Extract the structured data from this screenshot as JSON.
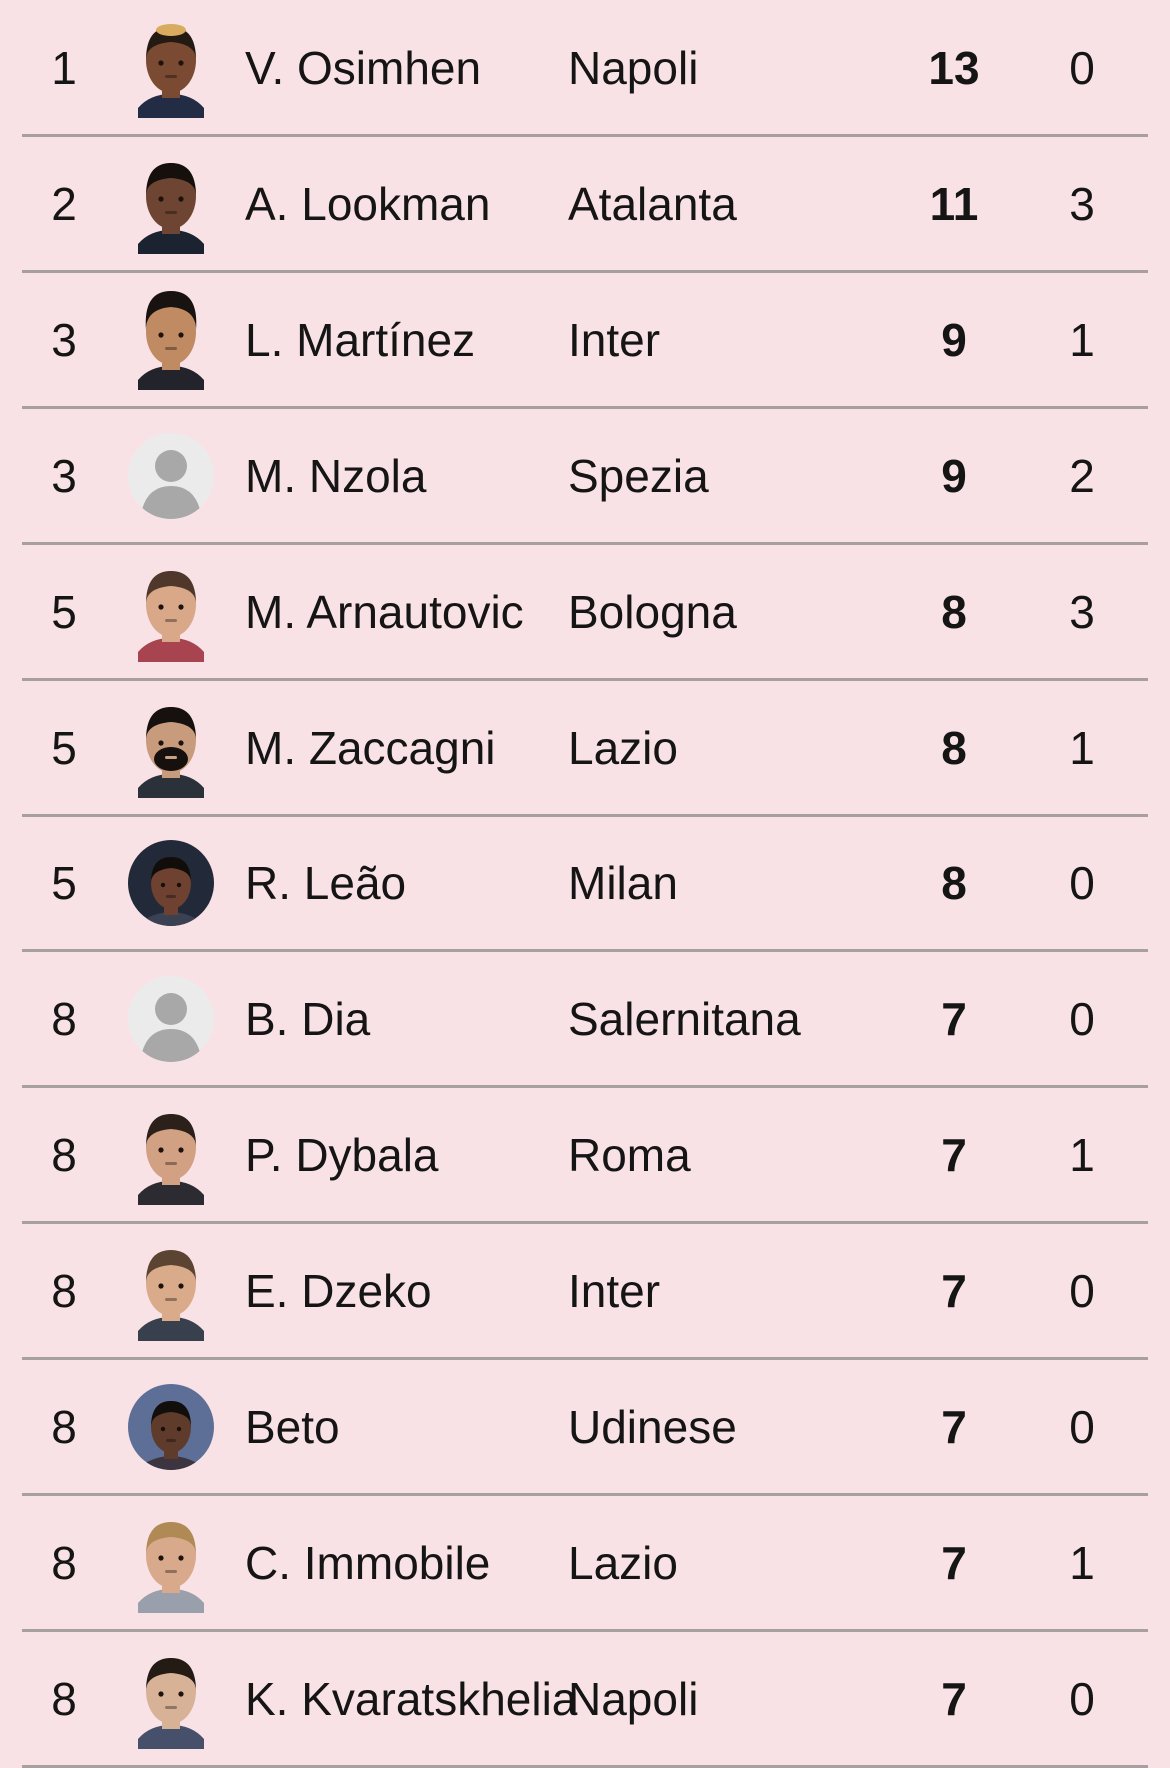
{
  "colors": {
    "background": "#f9e2e5",
    "divider": "#a89fa1",
    "text": "#151515",
    "placeholder_circle": "#ecebeb",
    "placeholder_silhouette": "#a8a8a8"
  },
  "table": {
    "columns": [
      "rank",
      "avatar",
      "player",
      "team",
      "goals",
      "assists"
    ],
    "rows": [
      {
        "rank": "1",
        "name": "V. Osimhen",
        "team": "Napoli",
        "goals": "13",
        "assists": "0",
        "avatar": {
          "type": "cutout",
          "skin": "#7a4a33",
          "hair": "#221a13",
          "hair2": "#d8ab5e",
          "shirt": "#222c44"
        }
      },
      {
        "rank": "2",
        "name": "A. Lookman",
        "team": "Atalanta",
        "goals": "11",
        "assists": "3",
        "avatar": {
          "type": "cutout",
          "skin": "#6e4533",
          "hair": "#15100c",
          "shirt": "#1c2330"
        }
      },
      {
        "rank": "3",
        "name": "L. Martínez",
        "team": "Inter",
        "goals": "9",
        "assists": "1",
        "avatar": {
          "type": "cutout",
          "skin": "#c08a63",
          "hair": "#181310",
          "hairStyle": "tall",
          "shirt": "#23232b"
        }
      },
      {
        "rank": "3",
        "name": "M. Nzola",
        "team": "Spezia",
        "goals": "9",
        "assists": "2",
        "avatar": {
          "type": "placeholder"
        }
      },
      {
        "rank": "5",
        "name": "M. Arnautovic",
        "team": "Bologna",
        "goals": "8",
        "assists": "3",
        "avatar": {
          "type": "cutout",
          "skin": "#d8a888",
          "hair": "#4f382b",
          "shirt": "#a84350"
        }
      },
      {
        "rank": "5",
        "name": "M. Zaccagni",
        "team": "Lazio",
        "goals": "8",
        "assists": "1",
        "avatar": {
          "type": "cutout",
          "skin": "#c99b7d",
          "hair": "#16110e",
          "beard": "#16110e",
          "shirt": "#2a3138"
        }
      },
      {
        "rank": "5",
        "name": "R. Leão",
        "team": "Milan",
        "goals": "8",
        "assists": "0",
        "avatar": {
          "type": "circle-photo",
          "bg": "#222a39",
          "skin": "#6e4130",
          "hair": "#100d0b",
          "shirt": "#3a4152"
        }
      },
      {
        "rank": "8",
        "name": "B. Dia",
        "team": "Salernitana",
        "goals": "7",
        "assists": "0",
        "avatar": {
          "type": "placeholder"
        }
      },
      {
        "rank": "8",
        "name": "P. Dybala",
        "team": "Roma",
        "goals": "7",
        "assists": "1",
        "avatar": {
          "type": "cutout",
          "skin": "#d2a083",
          "hair": "#2c211a",
          "shirt": "#2b2b31"
        }
      },
      {
        "rank": "8",
        "name": "E. Dzeko",
        "team": "Inter",
        "goals": "7",
        "assists": "0",
        "avatar": {
          "type": "cutout",
          "skin": "#d9ab8a",
          "hair": "#5b4431",
          "shirt": "#39404d"
        }
      },
      {
        "rank": "8",
        "name": "Beto",
        "team": "Udinese",
        "goals": "7",
        "assists": "0",
        "avatar": {
          "type": "circle-photo",
          "bg": "#5d6f97",
          "skin": "#5f3b2c",
          "hair": "#110e0b",
          "shirt": "#3c3540"
        }
      },
      {
        "rank": "8",
        "name": "C. Immobile",
        "team": "Lazio",
        "goals": "7",
        "assists": "1",
        "avatar": {
          "type": "cutout",
          "skin": "#d8a98a",
          "hair": "#b08a54",
          "shirt": "#9aa0ab"
        }
      },
      {
        "rank": "8",
        "name": "K. Kvaratskhelia",
        "team": "Napoli",
        "goals": "7",
        "assists": "0",
        "avatar": {
          "type": "cutout",
          "skin": "#d8b296",
          "hair": "#241b15",
          "shirt": "#47506b"
        }
      }
    ]
  }
}
